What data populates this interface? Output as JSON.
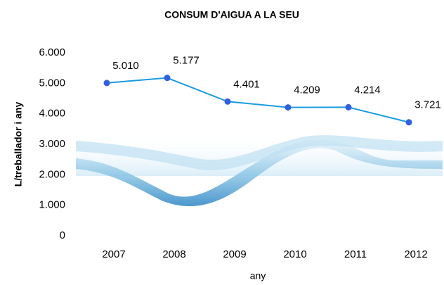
{
  "chart_data": {
    "type": "line",
    "title": "CONSUM D'AIGUA A LA SEU",
    "y_label": "L/treballador i any",
    "x_label": "any",
    "categories": [
      "2007",
      "2008",
      "2009",
      "2010",
      "2011",
      "2012"
    ],
    "series": [
      {
        "name": "L/treballador i any",
        "line_color": "#1a9be0",
        "marker_color": "#3060e0",
        "values": [
          5010,
          5177,
          4401,
          4209,
          4214,
          3721
        ],
        "value_labels": [
          "5.010",
          "5.177",
          "4.401",
          "4.209",
          "4.214",
          "3.721"
        ]
      }
    ],
    "ylim": [
      0,
      6000
    ],
    "yticks": [
      0,
      {
        "value": 1000,
        "label": "1.000"
      },
      {
        "value": 2000,
        "label": "2.000"
      },
      {
        "value": 3000,
        "label": "3.000"
      },
      {
        "value": 4000,
        "label": "4.000"
      },
      {
        "value": 5000,
        "label": "5.000"
      },
      {
        "value": 6000,
        "label": "6.000"
      }
    ]
  }
}
